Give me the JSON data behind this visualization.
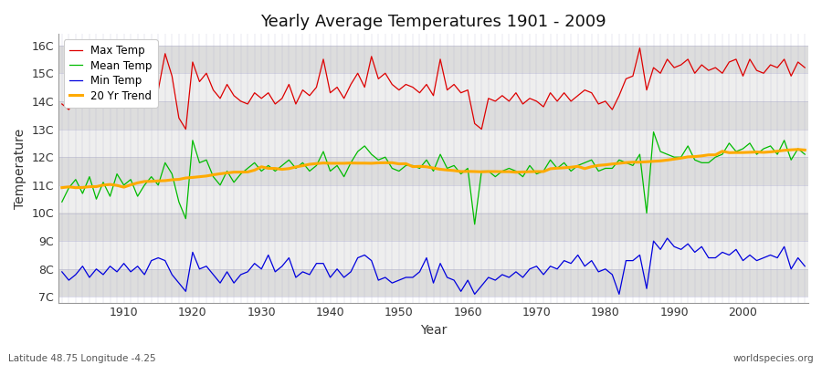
{
  "title": "Yearly Average Temperatures 1901 - 2009",
  "xlabel": "Year",
  "ylabel": "Temperature",
  "latitude": "48.75",
  "longitude": "-4.25",
  "start_year": 1901,
  "end_year": 2009,
  "legend_labels": [
    "Max Temp",
    "Mean Temp",
    "Min Temp",
    "20 Yr Trend"
  ],
  "legend_colors": [
    "#dd0000",
    "#00bb00",
    "#0000dd",
    "#ffaa00"
  ],
  "background_color": "#ffffff",
  "plot_bg_color": "#e8e8e8",
  "band_color_a": "#dddddd",
  "band_color_b": "#eeeeee",
  "yticks": [
    7,
    8,
    9,
    10,
    11,
    12,
    13,
    14,
    15,
    16
  ],
  "ylim": [
    6.8,
    16.4
  ],
  "xlim": [
    1900.5,
    2009.5
  ],
  "xticks": [
    1910,
    1920,
    1930,
    1940,
    1950,
    1960,
    1970,
    1980,
    1990,
    2000
  ]
}
